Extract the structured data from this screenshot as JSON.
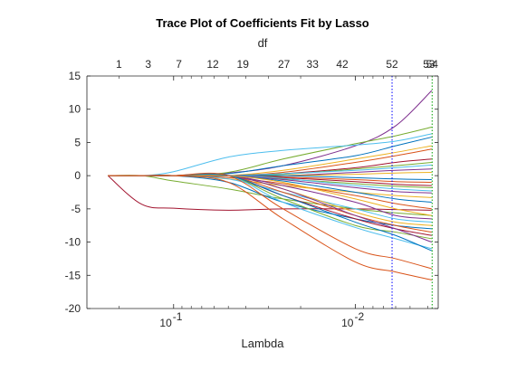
{
  "chart_data": {
    "type": "line",
    "title": "Trace Plot of Coefficients Fit by Lasso",
    "xlabel": "Lambda",
    "ylabel": "",
    "top_axis_label": "df",
    "x_scale": "log",
    "x_reversed": true,
    "xlim": [
      0.3,
      0.0035
    ],
    "ylim": [
      -20,
      15
    ],
    "y_ticks": [
      15,
      10,
      5,
      0,
      -5,
      -10,
      -15,
      -20
    ],
    "y_tick_labels": [
      "15",
      "10",
      "5",
      "0",
      "-5",
      "-10",
      "-15",
      "-20"
    ],
    "x_ticks": [
      {
        "value": 0.1,
        "base": "10",
        "exp": "-1"
      },
      {
        "value": 0.01,
        "base": "10",
        "exp": "-2"
      }
    ],
    "df_ticks": [
      {
        "lambda": 0.2,
        "label": "1"
      },
      {
        "lambda": 0.138,
        "label": "3"
      },
      {
        "lambda": 0.0935,
        "label": "7"
      },
      {
        "lambda": 0.0609,
        "label": "12"
      },
      {
        "lambda": 0.0416,
        "label": "19"
      },
      {
        "lambda": 0.0247,
        "label": "27"
      },
      {
        "lambda": 0.0172,
        "label": "33"
      },
      {
        "lambda": 0.0118,
        "label": "42"
      },
      {
        "lambda": 0.00628,
        "label": "52"
      },
      {
        "lambda": 0.00393,
        "label": "53"
      },
      {
        "lambda": 0.00378,
        "label": "54"
      }
    ],
    "vlines": [
      {
        "lambda": 0.00628,
        "color": "#0000ff",
        "style": "dotted"
      },
      {
        "lambda": 0.00378,
        "color": "#00a000",
        "style": "dotted"
      }
    ],
    "grid": false,
    "legend": "none",
    "lambda_path": [
      0.23,
      0.15,
      0.1,
      0.05,
      0.025,
      0.01,
      0.006,
      0.0038
    ],
    "series": [
      {
        "color": "#7E2F8E",
        "values": [
          0,
          0,
          0,
          0.4,
          1.5,
          4.5,
          7.5,
          12.8
        ]
      },
      {
        "color": "#77AC30",
        "values": [
          0,
          0,
          0,
          0.5,
          2.5,
          4.8,
          6.0,
          7.3
        ]
      },
      {
        "color": "#4DBEEE",
        "values": [
          0,
          0,
          0.6,
          2.8,
          3.8,
          4.6,
          5.2,
          6.3
        ]
      },
      {
        "color": "#0072BD",
        "values": [
          0,
          0,
          0,
          0.3,
          1.5,
          3.0,
          4.5,
          5.8
        ]
      },
      {
        "color": "#EDB120",
        "values": [
          0,
          0,
          0,
          0,
          0.8,
          2.5,
          3.5,
          4.5
        ]
      },
      {
        "color": "#D95319",
        "values": [
          0,
          0,
          0,
          0,
          0.5,
          2.0,
          3.0,
          4.0
        ]
      },
      {
        "color": "#A2142F",
        "values": [
          0,
          0,
          0,
          0,
          0.3,
          1.2,
          2.0,
          2.5
        ]
      },
      {
        "color": "#77AC30",
        "values": [
          0,
          0,
          0,
          0,
          0.2,
          1.0,
          1.5,
          2.0
        ]
      },
      {
        "color": "#4DBEEE",
        "values": [
          0,
          0,
          0,
          0,
          0.3,
          0.8,
          1.2,
          1.6
        ]
      },
      {
        "color": "#7E2F8E",
        "values": [
          0,
          0,
          0,
          0,
          0,
          0.5,
          0.8,
          1.0
        ]
      },
      {
        "color": "#EDB120",
        "values": [
          0,
          0,
          0,
          0,
          0,
          0.2,
          0.4,
          0.5
        ]
      },
      {
        "color": "#0072BD",
        "values": [
          0,
          0,
          0,
          0,
          0,
          -0.3,
          -0.5,
          -0.6
        ]
      },
      {
        "color": "#D95319",
        "values": [
          0,
          0,
          0,
          0,
          -0.2,
          -0.6,
          -0.9,
          -1.0
        ]
      },
      {
        "color": "#A2142F",
        "values": [
          0,
          0,
          0,
          0,
          -0.3,
          -0.9,
          -1.3,
          -1.5
        ]
      },
      {
        "color": "#77AC30",
        "values": [
          0,
          0,
          0,
          0,
          -0.5,
          -1.2,
          -1.6,
          -1.8
        ]
      },
      {
        "color": "#4DBEEE",
        "values": [
          0,
          0,
          0,
          0,
          -0.4,
          -1.5,
          -2.0,
          -2.3
        ]
      },
      {
        "color": "#7E2F8E",
        "values": [
          0,
          0,
          0,
          0,
          -0.6,
          -1.8,
          -2.4,
          -2.6
        ]
      },
      {
        "color": "#EDB120",
        "values": [
          0,
          0,
          0,
          -0.5,
          -1.5,
          -2.5,
          -3.0,
          -3.3
        ]
      },
      {
        "color": "#0072BD",
        "values": [
          0,
          0,
          0,
          0,
          -0.8,
          -2.5,
          -3.5,
          -4.0
        ]
      },
      {
        "color": "#D95319",
        "values": [
          0,
          0,
          0,
          -0.3,
          -1.2,
          -3.0,
          -4.2,
          -5.0
        ]
      },
      {
        "color": "#A2142F",
        "values": [
          0,
          -4.3,
          -4.9,
          -5.2,
          -5.0,
          -5.0,
          -5.1,
          -5.2
        ]
      },
      {
        "color": "#77AC30",
        "values": [
          0,
          0,
          -0.8,
          -2.0,
          -3.5,
          -5.0,
          -5.6,
          -6.0
        ]
      },
      {
        "color": "#4DBEEE",
        "values": [
          0,
          0,
          0,
          -0.5,
          -2.5,
          -5.0,
          -6.5,
          -7.0
        ]
      },
      {
        "color": "#7E2F8E",
        "values": [
          0,
          0,
          0,
          0,
          -1.5,
          -4.0,
          -6.0,
          -6.5
        ]
      },
      {
        "color": "#EDB120",
        "values": [
          0,
          0,
          0,
          0,
          -2.0,
          -5.5,
          -7.0,
          -7.5
        ]
      },
      {
        "color": "#0072BD",
        "values": [
          0,
          0,
          0,
          -1.0,
          -4.0,
          -6.5,
          -7.5,
          -8.0
        ]
      },
      {
        "color": "#D95319",
        "values": [
          0,
          0,
          0,
          0,
          -2.5,
          -6.0,
          -7.5,
          -8.5
        ]
      },
      {
        "color": "#A2142F",
        "values": [
          0,
          0,
          0,
          0,
          -3.0,
          -6.5,
          -8.0,
          -9.0
        ]
      },
      {
        "color": "#77AC30",
        "values": [
          0,
          0,
          0,
          0,
          -3.5,
          -7.5,
          -8.5,
          -9.5
        ]
      },
      {
        "color": "#4DBEEE",
        "values": [
          0,
          0,
          0,
          0,
          -4.0,
          -7.8,
          -9.5,
          -11.0
        ]
      },
      {
        "color": "#7E2F8E",
        "values": [
          0,
          0,
          0,
          0,
          -2.0,
          -6.0,
          -8.0,
          -10.0
        ]
      },
      {
        "color": "#EDB120",
        "values": [
          0,
          0,
          0,
          0,
          -1.0,
          -3.5,
          -5.0,
          -6.0
        ]
      },
      {
        "color": "#0072BD",
        "values": [
          0,
          0,
          0,
          0,
          -3.0,
          -7.0,
          -9.0,
          -11.3
        ]
      },
      {
        "color": "#D95319",
        "values": [
          0,
          0,
          0,
          0,
          -5.0,
          -11.0,
          -12.5,
          -14.0
        ]
      },
      {
        "color": "#D95319",
        "values": [
          0,
          0,
          0,
          -1.0,
          -6.5,
          -13.0,
          -14.5,
          -15.7
        ]
      }
    ]
  }
}
